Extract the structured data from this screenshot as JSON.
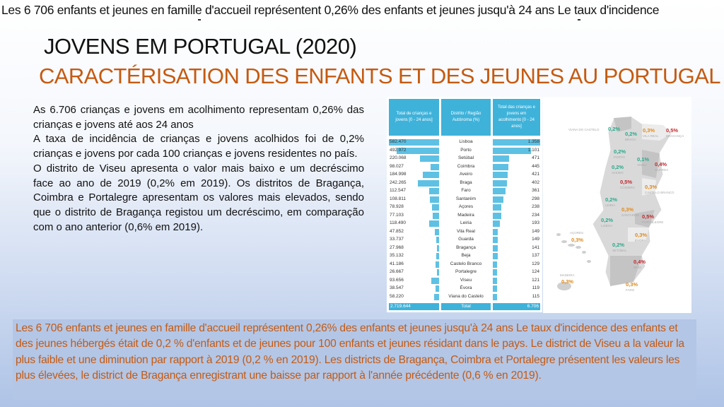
{
  "top_line": "Les 6 706 enfants et jeunes en famille d'accueil représentent 0,26% des enfants et jeunes jusqu'à 24 ans Le taux d'incidence",
  "title": "JOVENS EM PORTUGAL  (2020)",
  "subtitle": "CARACTÉRISATION DES ENFANTS ET DES JEUNES AU PORTUGAL",
  "left_paragraphs": [
    "As 6.706 crianças e jovens em acolhimento representam 0,26% das crianças e jovens até aos 24 anos",
    "A taxa de incidência de crianças e jovens acolhidos foi de 0,2% crianças e jovens por cada 100 crianças e jovens residentes no país.",
    "O distrito de Viseu apresenta o valor mais baixo e um decréscimo face ao ano de 2019 (0,2% em 2019). Os distritos de Bragança, Coimbra e Portalegre apresentam os valores mais elevados, sendo que o distrito de Bragança registou um decréscimo, em comparação com o ano anterior (0,6% em 2019)."
  ],
  "table": {
    "headers": [
      "Total de crianças e jovens [0 - 24 anos]",
      "Distrito / Região Autónoma (%)",
      "Total das crianças e jovens em acolhimento [0 - 24 anos]"
    ],
    "rows": [
      {
        "total": "582.470",
        "district": "Lisboa",
        "care": "1.358",
        "total_n": 582470,
        "care_n": 1358
      },
      {
        "total": "492.972",
        "district": "Porto",
        "care": "1.101",
        "total_n": 492972,
        "care_n": 1101
      },
      {
        "total": "220.068",
        "district": "Setúbal",
        "care": "471",
        "total_n": 220068,
        "care_n": 471
      },
      {
        "total": "98.027",
        "district": "Coimbra",
        "care": "445",
        "total_n": 98027,
        "care_n": 445
      },
      {
        "total": "184.998",
        "district": "Aveiro",
        "care": "421",
        "total_n": 184998,
        "care_n": 421
      },
      {
        "total": "242.265",
        "district": "Braga",
        "care": "402",
        "total_n": 242265,
        "care_n": 402
      },
      {
        "total": "112.547",
        "district": "Faro",
        "care": "361",
        "total_n": 112547,
        "care_n": 361
      },
      {
        "total": "108.811",
        "district": "Santarém",
        "care": "298",
        "total_n": 108811,
        "care_n": 298
      },
      {
        "total": "78.928",
        "district": "Açores",
        "care": "238",
        "total_n": 78928,
        "care_n": 238
      },
      {
        "total": "77.103",
        "district": "Madeira",
        "care": "234",
        "total_n": 77103,
        "care_n": 234
      },
      {
        "total": "118.490",
        "district": "Leiria",
        "care": "193",
        "total_n": 118490,
        "care_n": 193
      },
      {
        "total": "47.852",
        "district": "Vila Real",
        "care": "149",
        "total_n": 47852,
        "care_n": 149
      },
      {
        "total": "33.737",
        "district": "Guarda",
        "care": "149",
        "total_n": 33737,
        "care_n": 149
      },
      {
        "total": "27.968",
        "district": "Bragança",
        "care": "141",
        "total_n": 27968,
        "care_n": 141
      },
      {
        "total": "35.132",
        "district": "Beja",
        "care": "137",
        "total_n": 35132,
        "care_n": 137
      },
      {
        "total": "41.186",
        "district": "Castelo Branco",
        "care": "129",
        "total_n": 41186,
        "care_n": 129
      },
      {
        "total": "26.667",
        "district": "Portalegre",
        "care": "124",
        "total_n": 26667,
        "care_n": 124
      },
      {
        "total": "93.656",
        "district": "Viseu",
        "care": "121",
        "total_n": 93656,
        "care_n": 121
      },
      {
        "total": "38.547",
        "district": "Évora",
        "care": "119",
        "total_n": 38547,
        "care_n": 119
      },
      {
        "total": "58.220",
        "district": "Viana do Castelo",
        "care": "115",
        "total_n": 58220,
        "care_n": 115
      }
    ],
    "total": {
      "total": "2.719.644",
      "district": "Total",
      "care": "6.706"
    },
    "bar_color": "#5ec1e3",
    "header_color": "#3fb2da"
  },
  "map": {
    "colors": {
      "low": "#2aa88a",
      "mid": "#e0891a",
      "high": "#c0282c"
    },
    "labels": [
      {
        "value": "0,2%",
        "name": "VIANA DO CASTELO",
        "level": "low"
      },
      {
        "value": "0,2%",
        "name": "BRAGA",
        "level": "low"
      },
      {
        "value": "0,3%",
        "name": "VILA REAL",
        "level": "mid"
      },
      {
        "value": "0,5%",
        "name": "BRAGANÇA",
        "level": "high"
      },
      {
        "value": "0,2%",
        "name": "PORTO",
        "level": "low"
      },
      {
        "value": "0,1%",
        "name": "VISEU",
        "level": "low"
      },
      {
        "value": "0,4%",
        "name": "GUARDA",
        "level": "high"
      },
      {
        "value": "0,2%",
        "name": "AVEIRO",
        "level": "low"
      },
      {
        "value": "0,5%",
        "name": "COIMBRA",
        "level": "high"
      },
      {
        "value": "0,3%",
        "name": "CASTELO BRANCO",
        "level": "mid"
      },
      {
        "value": "0,2%",
        "name": "LEIRIA",
        "level": "low"
      },
      {
        "value": "0,3%",
        "name": "SANTARÉM",
        "level": "mid"
      },
      {
        "value": "0,5%",
        "name": "PORTALEGRE",
        "level": "high"
      },
      {
        "value": "0,2%",
        "name": "LISBOA",
        "level": "low"
      },
      {
        "value": "0,3%",
        "name": "AÇORES",
        "level": "mid"
      },
      {
        "value": "0,3%",
        "name": "ÉVORA",
        "level": "mid"
      },
      {
        "value": "0,2%",
        "name": "SETÚBAL",
        "level": "low"
      },
      {
        "value": "0,4%",
        "name": "BEJA",
        "level": "high"
      },
      {
        "value": "0,3%",
        "name": "MADEIRA",
        "level": "mid"
      },
      {
        "value": "0,3%",
        "name": "FARO",
        "level": "mid"
      }
    ]
  },
  "bottom_text": "Les 6 706 enfants et jeunes en famille d'accueil représentent 0,26% des enfants et jeunes jusqu'à 24 ans Le taux d'incidence des enfants et des jeunes hébergés était de 0,2 % d'enfants et de jeunes pour 100 enfants et jeunes résidant dans le pays. Le district de Viseu a la valeur la plus faible et une diminution par rapport à 2019 (0,2 % en 2019).  Les districts de Bragança, Coimbra et Portalegre présentent les valeurs les plus élevées, le district de Bragança enregistrant une baisse par rapport à l'année précédente (0,6 % en 2019).",
  "colors": {
    "subtitle": "#c55a11",
    "bottom_box": "#b3c6e6"
  }
}
